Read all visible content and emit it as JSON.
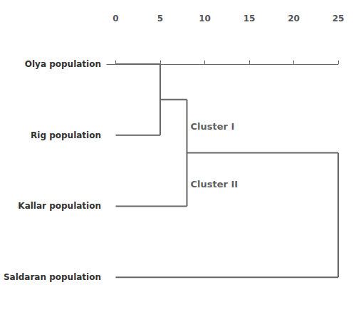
{
  "chart_data": {
    "type": "dendrogram",
    "categories": [
      "Olya population",
      "Rig population",
      "Kallar population",
      "Saldaran population"
    ],
    "x_start": 0,
    "merges": [
      {
        "a": [
          0
        ],
        "b": [
          1
        ],
        "x": 5
      },
      {
        "a": [
          0,
          1
        ],
        "b": [
          2
        ],
        "x": 8,
        "label": "Cluster I"
      },
      {
        "a": [
          0,
          1,
          2
        ],
        "b": [
          3
        ],
        "x": 25,
        "label": "Cluster II"
      }
    ],
    "color": "#666666",
    "xlim": [
      -1,
      25
    ],
    "xticks": [
      0,
      5,
      10,
      15,
      20,
      25
    ],
    "grid": false
  }
}
